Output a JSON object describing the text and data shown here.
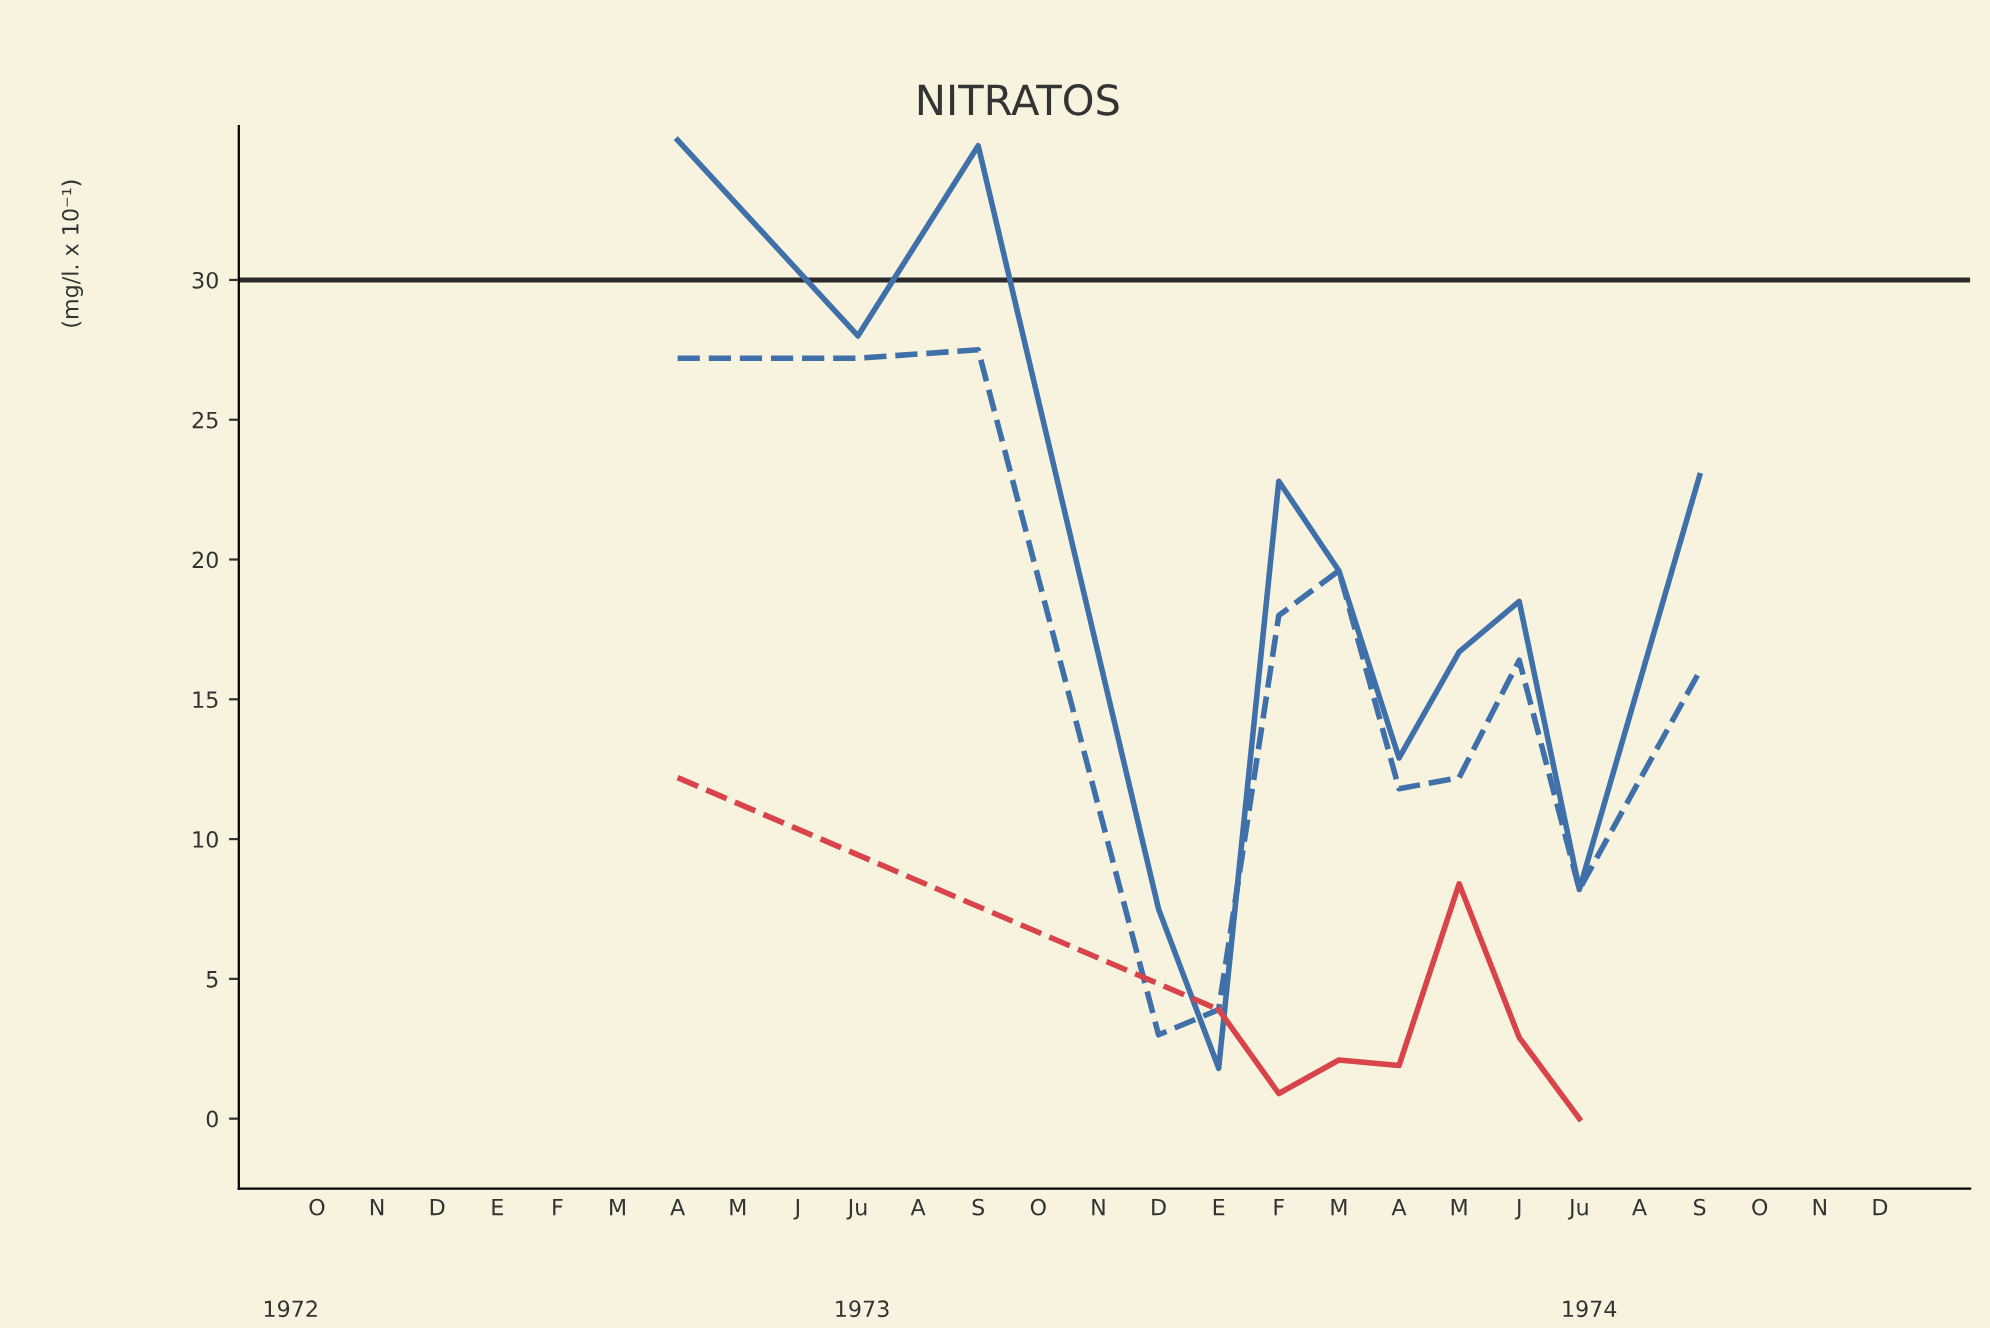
{
  "chart_data": {
    "type": "line",
    "title": "NITRATOS",
    "ylabel": "(mg/l. x 10⁻¹)",
    "categories": [
      "O",
      "N",
      "D",
      "E",
      "F",
      "M",
      "A",
      "M",
      "J",
      "Ju",
      "A",
      "S",
      "O",
      "N",
      "D",
      "E",
      "F",
      "M",
      "A",
      "M",
      "J",
      "Ju",
      "A",
      "S",
      "O",
      "N",
      "D"
    ],
    "series": [
      {
        "color": "#3f70aa",
        "line_style": "solid",
        "values": [
          null,
          null,
          null,
          null,
          null,
          null,
          35.0,
          null,
          null,
          28.0,
          null,
          34.8,
          null,
          null,
          7.5,
          1.8,
          22.8,
          19.6,
          12.9,
          16.7,
          18.5,
          8.2,
          null,
          23.0,
          null,
          null,
          null
        ]
      },
      {
        "color": "#3f70aa",
        "line_style": "dashed",
        "values": [
          null,
          null,
          null,
          null,
          null,
          null,
          27.2,
          null,
          null,
          27.2,
          null,
          27.5,
          null,
          null,
          3.0,
          3.9,
          18.0,
          19.6,
          11.8,
          12.2,
          16.4,
          8.2,
          null,
          16.0,
          null,
          null,
          null
        ]
      },
      {
        "color": "#d9434a",
        "line_style": "dashed",
        "values": [
          null,
          null,
          null,
          null,
          null,
          null,
          12.2,
          null,
          null,
          null,
          null,
          null,
          null,
          null,
          null,
          3.9,
          null,
          null,
          null,
          null,
          null,
          null,
          null,
          null,
          null,
          null,
          null
        ]
      },
      {
        "color": "#d9434a",
        "line_style": "solid",
        "values": [
          null,
          null,
          null,
          null,
          null,
          null,
          null,
          null,
          null,
          null,
          null,
          null,
          null,
          null,
          null,
          3.9,
          0.9,
          2.1,
          1.9,
          8.4,
          2.9,
          0.0,
          null,
          null,
          null,
          null,
          null
        ]
      }
    ],
    "ylim": [
      -2.5,
      35.5
    ],
    "yticks": [
      0,
      5,
      10,
      15,
      20,
      25,
      30
    ],
    "grid": false,
    "marker": "none",
    "ref_lines": [
      {
        "axis": "y",
        "value": 30,
        "color": "#2a2a2a",
        "line_style": "solid"
      }
    ],
    "annotations": [
      "1972",
      "1973",
      "1974"
    ]
  }
}
